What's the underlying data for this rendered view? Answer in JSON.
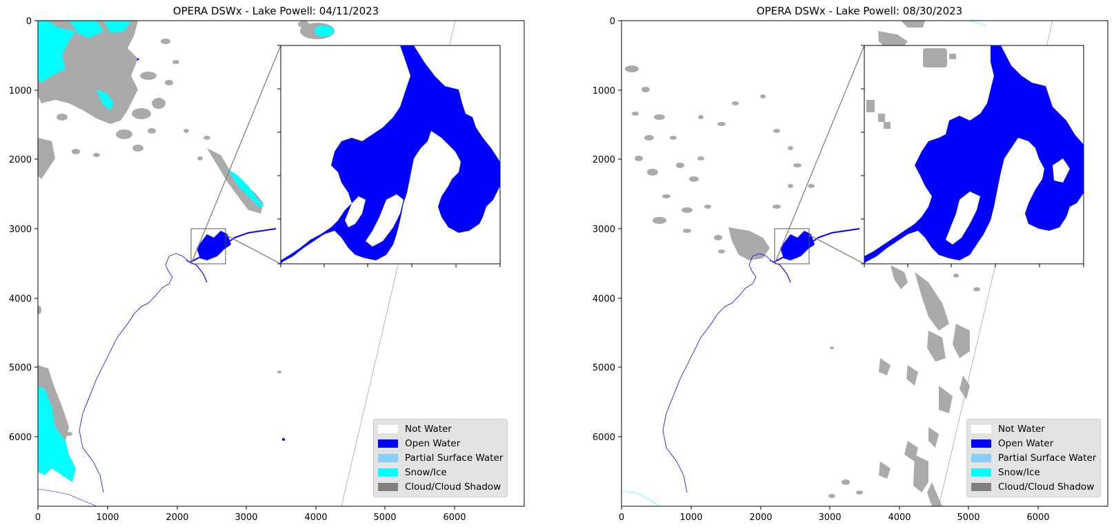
{
  "panels": [
    {
      "title": "OPERA DSWx - Lake Powell: 04/11/2023",
      "x_ticks": [
        "0",
        "1000",
        "2000",
        "3000",
        "4000",
        "5000",
        "6000"
      ],
      "y_ticks": [
        "0",
        "1000",
        "2000",
        "3000",
        "4000",
        "5000",
        "6000"
      ],
      "legend": [
        {
          "label": "Not Water",
          "color": "#ffffff"
        },
        {
          "label": "Open Water",
          "color": "#0000ff"
        },
        {
          "label": "Partial Surface Water",
          "color": "#87cefa"
        },
        {
          "label": "Snow/Ice",
          "color": "#00ffff"
        },
        {
          "label": "Cloud/Cloud Shadow",
          "color": "#808080"
        }
      ]
    },
    {
      "title": "OPERA DSWx - Lake Powell: 08/30/2023",
      "x_ticks": [
        "0",
        "1000",
        "2000",
        "3000",
        "4000",
        "5000",
        "6000"
      ],
      "y_ticks": [
        "0",
        "1000",
        "2000",
        "3000",
        "4000",
        "5000",
        "6000"
      ],
      "legend": [
        {
          "label": "Not Water",
          "color": "#ffffff"
        },
        {
          "label": "Open Water",
          "color": "#0000ff"
        },
        {
          "label": "Partial Surface Water",
          "color": "#87cefa"
        },
        {
          "label": "Snow/Ice",
          "color": "#00ffff"
        },
        {
          "label": "Cloud/Cloud Shadow",
          "color": "#808080"
        }
      ]
    }
  ],
  "colors": {
    "open_water": "#0000ff",
    "snow_ice": "#00ffff",
    "cloud": "#aaaaaa",
    "axis": "#000000",
    "inset_frame": "#808080"
  },
  "icons": [
    "map-image",
    "zoom-inset"
  ]
}
